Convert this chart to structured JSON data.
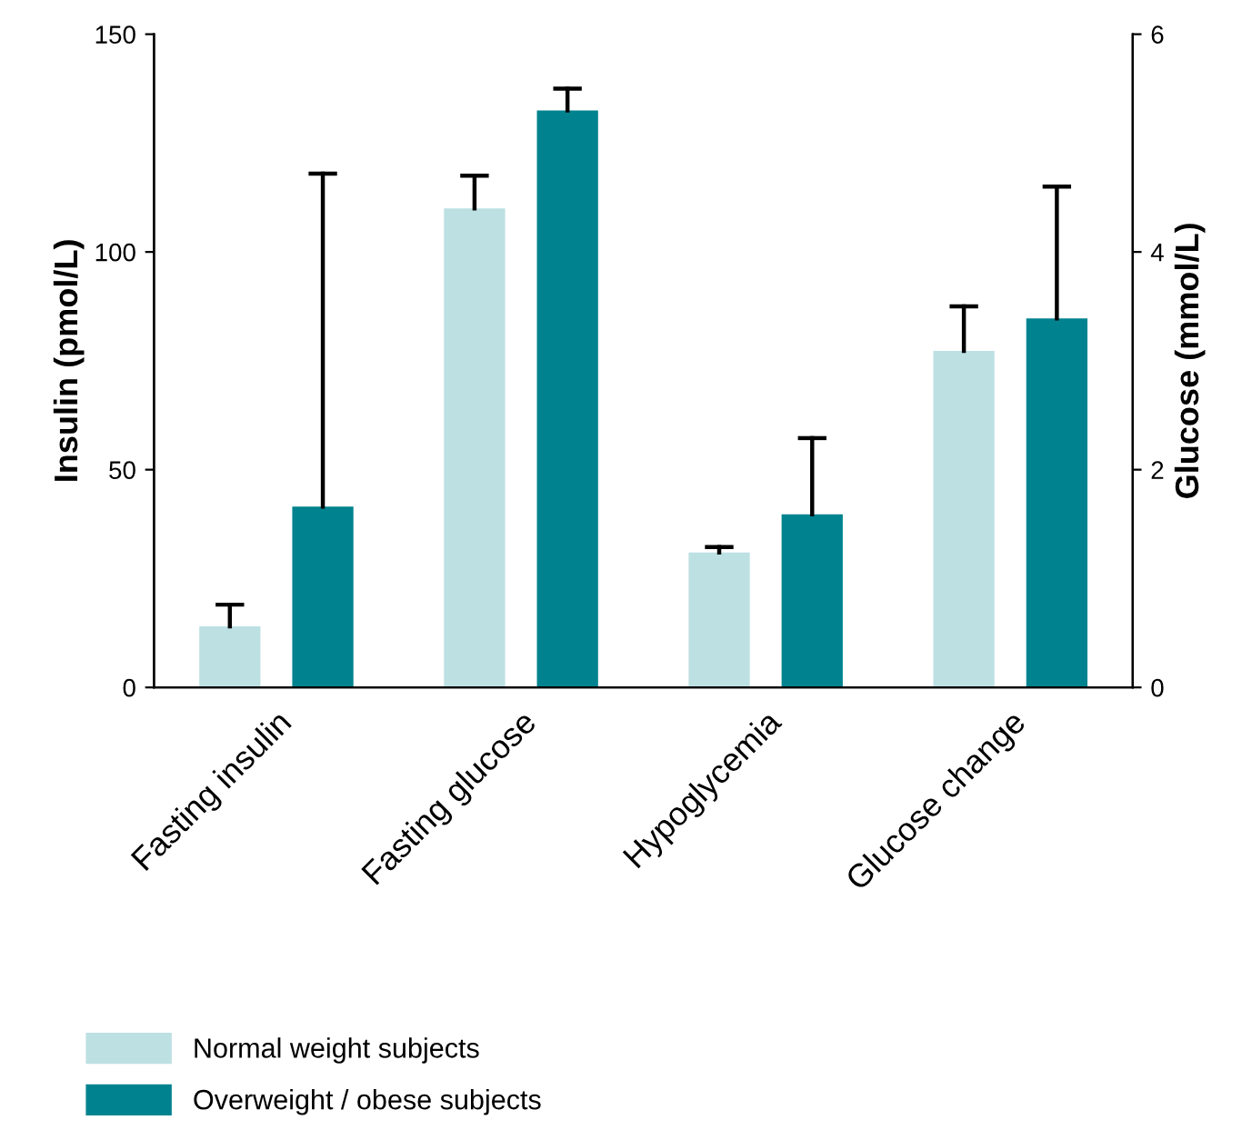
{
  "chart_data": {
    "type": "bar",
    "ylabel": "Insulin (pmol/L)",
    "y2label": "Glucose (mmol/L)",
    "categories": [
      "Fasting insulin",
      "Fasting glucose",
      "Hypoglycemia",
      "Glucose change"
    ],
    "series": [
      {
        "name": "Normal weight subjects",
        "color": "#bde0e3",
        "values": [
          14,
          null,
          null,
          null
        ],
        "errors": [
          [
            14,
            19
          ],
          null,
          null,
          null
        ]
      },
      {
        "name": "Overweight / obese subjects",
        "color": "#00838f",
        "values": [
          41.5,
          null,
          null,
          null
        ],
        "errors": [
          [
            41.5,
            118
          ],
          null,
          null,
          null
        ]
      },
      {
        "color": "#bde0e3",
        "axis": "y2",
        "values": [
          null,
          4.4,
          1.24,
          3.09
        ],
        "errors": [
          null,
          [
            4.4,
            4.7
          ],
          [
            1.24,
            1.29
          ],
          [
            3.09,
            3.5
          ]
        ]
      },
      {
        "color": "#00838f",
        "axis": "y2",
        "values": [
          null,
          5.3,
          1.59,
          3.39
        ],
        "errors": [
          null,
          [
            5.3,
            5.5
          ],
          [
            1.59,
            2.29
          ],
          [
            3.39,
            4.6
          ]
        ]
      }
    ],
    "ylim": [
      0,
      150
    ],
    "yticks": [
      0,
      50,
      100,
      150
    ],
    "y2lim": [
      0,
      6
    ],
    "y2ticks": [
      0,
      2,
      4,
      6
    ],
    "grid": false,
    "legend": "bottom left"
  }
}
